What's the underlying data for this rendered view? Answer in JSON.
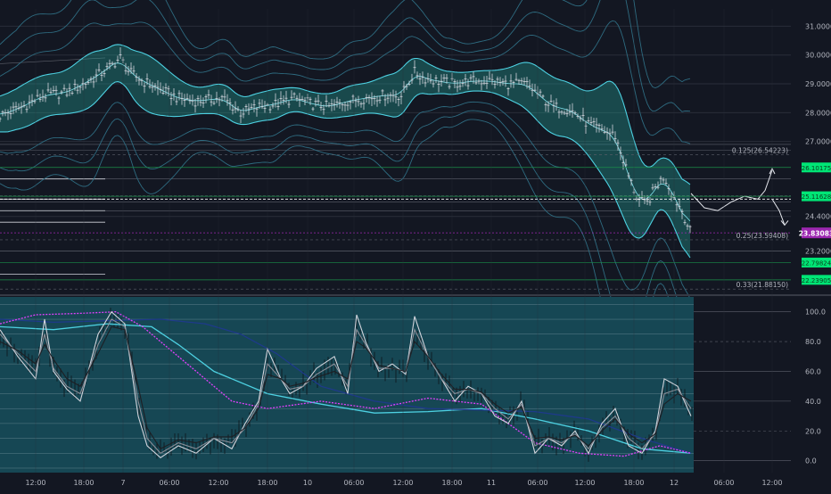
{
  "chart_data": [
    {
      "type": "line",
      "panel": "price",
      "title": "",
      "ylim": [
        21.7,
        31.6
      ],
      "y_ticks": [
        {
          "v": 31.0,
          "label": "31.00000"
        },
        {
          "v": 30.0,
          "label": "30.00000"
        },
        {
          "v": 29.0,
          "label": "29.00000"
        },
        {
          "v": 28.0,
          "label": "28.00000"
        },
        {
          "v": 27.0,
          "label": "27.00000"
        },
        {
          "v": 24.4,
          "label": "24.40000"
        },
        {
          "v": 23.2,
          "label": "23.20000"
        }
      ],
      "x_ticks": [
        "12:00",
        "18:00",
        "7",
        "06:00",
        "12:00",
        "18:00",
        "10",
        "06:00",
        "12:00",
        "18:00",
        "11",
        "06:00",
        "12:00",
        "18:00",
        "12",
        "06:00",
        "12:00"
      ],
      "price_series": {
        "x": [
          0,
          25,
          50,
          75,
          100,
          120,
          135,
          145,
          160,
          180,
          200,
          220,
          250,
          270,
          290,
          310,
          330,
          350,
          370,
          390,
          410,
          430,
          450,
          465,
          475,
          490,
          510,
          530,
          550,
          570,
          590,
          605,
          620,
          640,
          660,
          675,
          690,
          705,
          715,
          725,
          735,
          745,
          755,
          765,
          775
        ],
        "values": [
          27.9,
          28.2,
          28.6,
          28.7,
          29.1,
          29.5,
          29.9,
          29.4,
          29.1,
          28.8,
          28.5,
          28.4,
          28.5,
          28.0,
          28.2,
          28.3,
          28.5,
          28.3,
          28.2,
          28.4,
          28.5,
          28.6,
          28.6,
          29.4,
          29.2,
          29.1,
          29.0,
          29.1,
          29.1,
          29.0,
          29.0,
          28.6,
          28.2,
          28.1,
          27.6,
          27.4,
          27.2,
          25.8,
          25.0,
          24.8,
          25.4,
          25.8,
          25.1,
          24.6,
          23.8
        ]
      },
      "projection_path": {
        "x": [
          775,
          790,
          805,
          820,
          835,
          850,
          858,
          866
        ],
        "values": [
          25.2,
          24.7,
          24.6,
          24.9,
          25.1,
          25.0,
          25.3,
          26.0
        ]
      },
      "fib_levels": [
        {
          "label": "0.125(26.54223)",
          "value": 26.54
        },
        {
          "label": "0.25(23.59408)",
          "value": 23.59
        },
        {
          "label": "0.33(21.88150)",
          "value": 21.88
        }
      ],
      "current_price": {
        "value": 23.83,
        "label": "23.83083",
        "color": "#9c27b0"
      },
      "green_markers": [
        {
          "value": 26.1,
          "label": "26.10175"
        },
        {
          "value": 25.1,
          "label": "25.11628"
        },
        {
          "value": 22.8,
          "label": "22.79824"
        },
        {
          "value": 22.2,
          "label": "22.23905"
        }
      ],
      "colors": {
        "band_fill": "#26a69a",
        "band_line": "#4dd0e1",
        "band_outer": "#2e6b80",
        "candle": "#d1d4dc",
        "green": "#00e676"
      }
    },
    {
      "type": "line",
      "panel": "oscillator",
      "ylim": [
        -8,
        110
      ],
      "y_ticks": [
        {
          "v": 100,
          "label": "100.0"
        },
        {
          "v": 80,
          "label": "80.0"
        },
        {
          "v": 60,
          "label": "60.0"
        },
        {
          "v": 40,
          "label": "40.0"
        },
        {
          "v": 20,
          "label": "20.0"
        },
        {
          "v": 0,
          "label": "0.0"
        }
      ],
      "osc_x": [
        0,
        20,
        40,
        50,
        60,
        75,
        90,
        110,
        125,
        140,
        155,
        165,
        180,
        200,
        220,
        240,
        260,
        275,
        290,
        300,
        315,
        325,
        340,
        355,
        375,
        390,
        400,
        410,
        425,
        440,
        455,
        465,
        480,
        495,
        510,
        525,
        540,
        555,
        570,
        585,
        600,
        615,
        630,
        645,
        660,
        675,
        690,
        705,
        720,
        735,
        745,
        760,
        775
      ],
      "series": [
        {
          "values": [
            88,
            70,
            55,
            95,
            60,
            48,
            40,
            85,
            100,
            92,
            30,
            10,
            2,
            10,
            5,
            15,
            8,
            25,
            40,
            75,
            55,
            45,
            50,
            62,
            70,
            45,
            98,
            80,
            60,
            65,
            58,
            97,
            70,
            55,
            40,
            50,
            45,
            30,
            25,
            40,
            5,
            15,
            10,
            20,
            5,
            25,
            35,
            10,
            5,
            20,
            55,
            50,
            30
          ],
          "color": "#d1d4dc"
        },
        {
          "values": [
            85,
            72,
            60,
            85,
            62,
            50,
            45,
            78,
            95,
            90,
            40,
            15,
            5,
            12,
            8,
            15,
            12,
            22,
            38,
            65,
            55,
            48,
            50,
            58,
            65,
            50,
            88,
            78,
            62,
            62,
            60,
            88,
            70,
            55,
            45,
            48,
            45,
            35,
            28,
            38,
            10,
            15,
            12,
            18,
            8,
            22,
            30,
            15,
            8,
            18,
            45,
            48,
            35
          ],
          "color": "#8a8e98"
        },
        {
          "values": [
            80,
            74,
            65,
            78,
            68,
            55,
            50,
            72,
            90,
            88,
            50,
            22,
            8,
            14,
            12,
            16,
            16,
            22,
            35,
            58,
            55,
            50,
            52,
            56,
            60,
            55,
            80,
            76,
            64,
            62,
            60,
            80,
            70,
            58,
            48,
            48,
            46,
            38,
            32,
            36,
            15,
            16,
            14,
            17,
            10,
            20,
            28,
            18,
            12,
            18,
            38,
            45,
            40
          ],
          "color": "#1e1f24"
        }
      ],
      "slow_lines": [
        {
          "x": [
            0,
            60,
            120,
            170,
            200,
            240,
            300,
            360,
            420,
            480,
            540,
            600,
            660,
            720,
            775
          ],
          "values": [
            90,
            88,
            92,
            90,
            78,
            60,
            45,
            38,
            32,
            33,
            35,
            28,
            20,
            8,
            5
          ],
          "color": "#4dd0e1"
        },
        {
          "x": [
            0,
            60,
            120,
            180,
            230,
            270,
            310,
            360,
            420,
            480,
            540,
            600,
            660,
            720,
            775
          ],
          "values": [
            95,
            93,
            94,
            95,
            92,
            85,
            72,
            50,
            40,
            35,
            34,
            33,
            28,
            15,
            5
          ],
          "color": "#1e3a8a"
        },
        {
          "x": [
            0,
            40,
            90,
            130,
            160,
            200,
            260,
            300,
            360,
            420,
            480,
            540,
            600,
            650,
            700,
            740,
            775
          ],
          "values": [
            92,
            98,
            99,
            100,
            90,
            70,
            40,
            35,
            40,
            35,
            42,
            38,
            12,
            5,
            3,
            10,
            5
          ],
          "color": "#e040fb"
        }
      ],
      "colors": {
        "panel_bg": "#164754",
        "grid": "#8ea7b0"
      }
    }
  ]
}
